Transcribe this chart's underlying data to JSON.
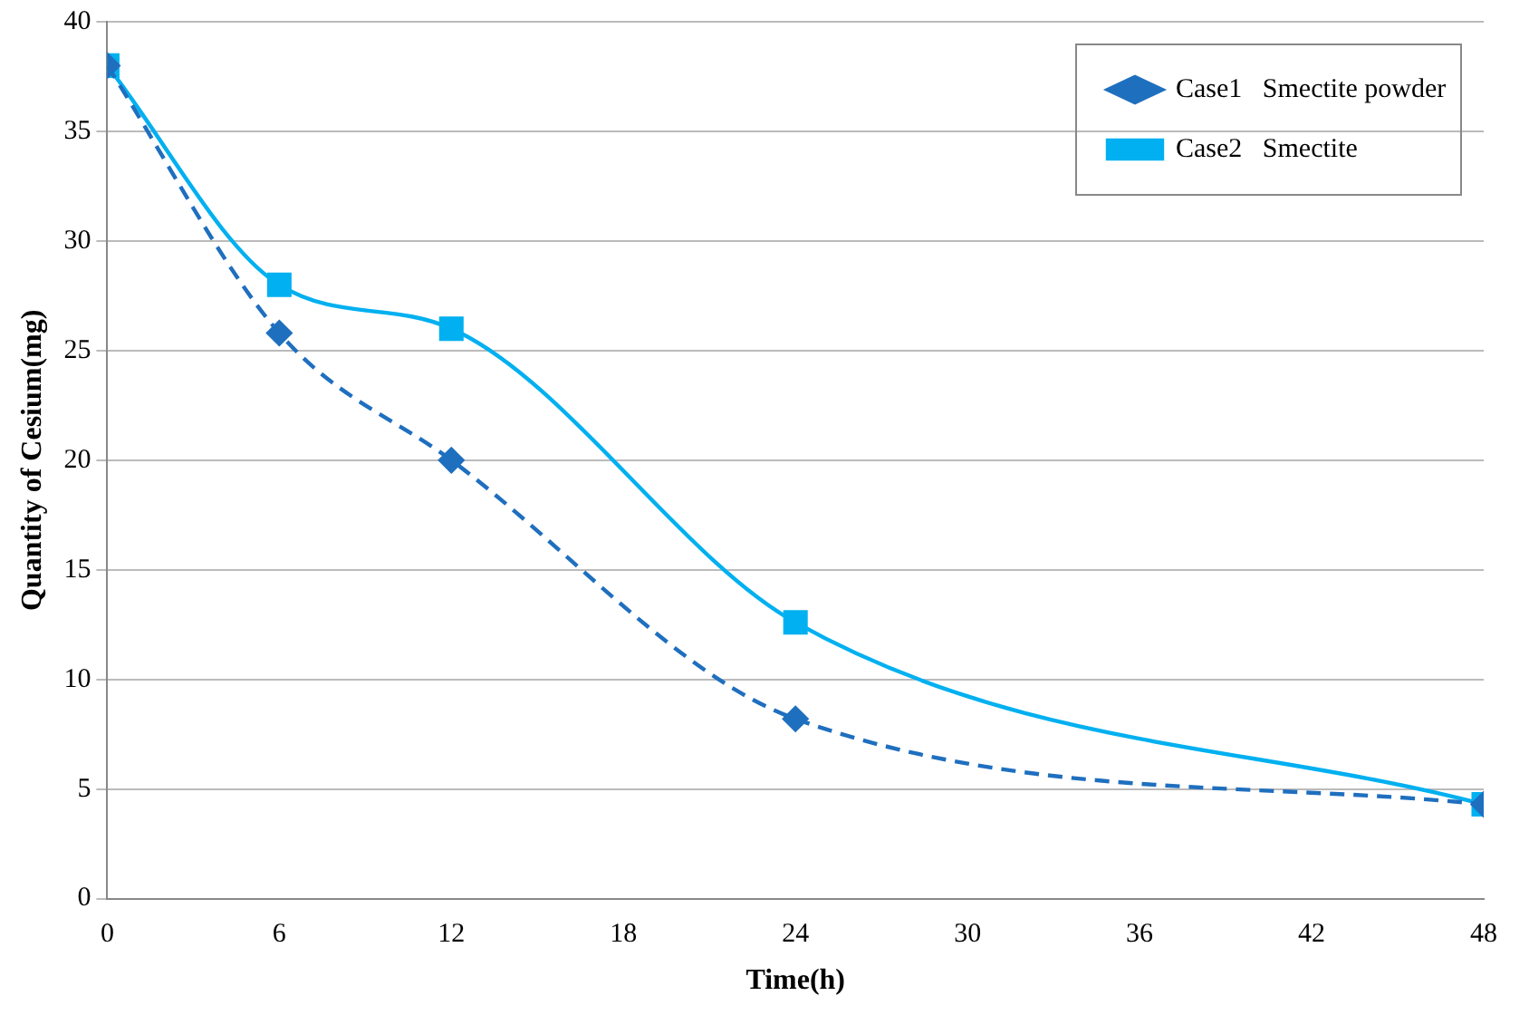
{
  "chart_data": {
    "type": "line",
    "xlabel": "Time(h)",
    "ylabel": "Quantity of Cesium(mg)",
    "x": [
      0,
      6,
      12,
      24,
      48
    ],
    "series": [
      {
        "name": "Case1   Smectite powder",
        "color": "#1f6fbf",
        "values": [
          38,
          25.8,
          20,
          8.2,
          4.3
        ],
        "marker": "diamond",
        "line_style": "dashed"
      },
      {
        "name": "Case2   Smectite",
        "color": "#00b0f0",
        "values": [
          38,
          28,
          26,
          12.6,
          4.3
        ],
        "marker": "square",
        "line_style": "solid"
      }
    ],
    "xlim": [
      0,
      48
    ],
    "xticks": [
      0,
      6,
      12,
      18,
      24,
      30,
      36,
      42,
      48
    ],
    "ylim": [
      0,
      40
    ],
    "yticks": [
      0,
      5,
      10,
      15,
      20,
      25,
      30,
      35,
      40
    ],
    "grid": "y",
    "legend": "top right"
  }
}
